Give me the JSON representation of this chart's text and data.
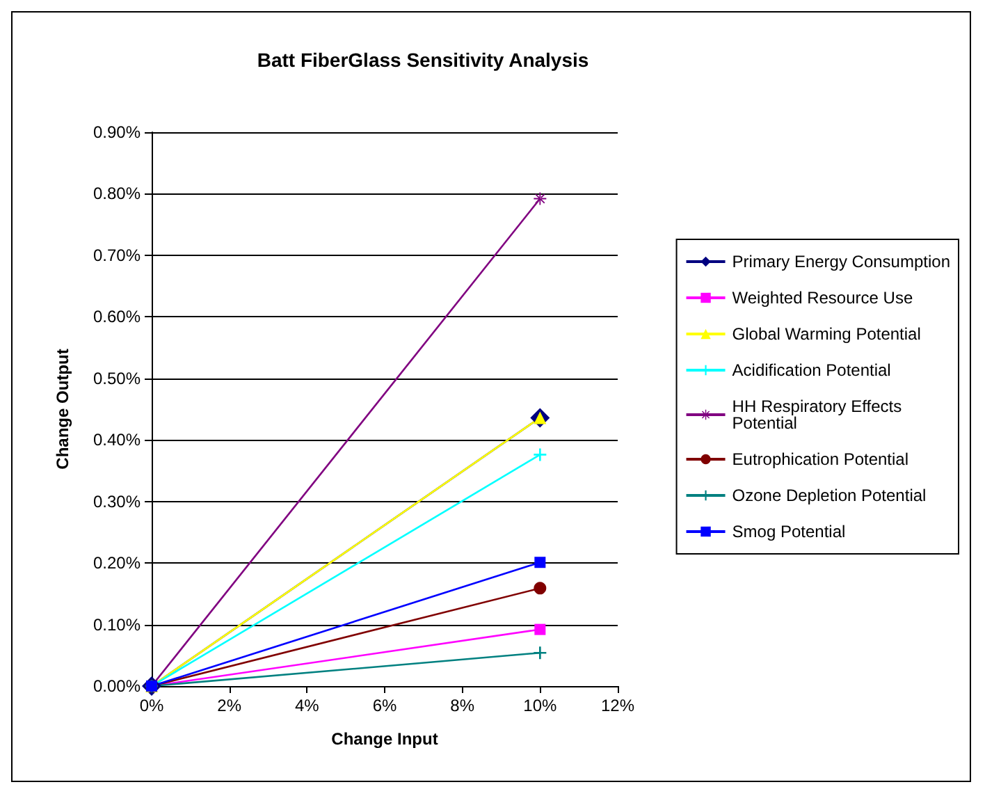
{
  "chart_data": {
    "type": "line",
    "title": "Batt FiberGlass Sensitivity Analysis",
    "xlabel": "Change Input",
    "ylabel": "Change Output",
    "x": [
      0,
      10
    ],
    "series": [
      {
        "name": "Primary Energy Consumption",
        "color": "#000080",
        "marker": "diamond",
        "values": [
          0,
          0.436
        ]
      },
      {
        "name": "Weighted Resource Use",
        "color": "#ff00ff",
        "marker": "square",
        "values": [
          0,
          0.092
        ]
      },
      {
        "name": "Global Warming Potential",
        "color": "#ffff00",
        "marker": "triangle",
        "values": [
          0,
          0.436
        ]
      },
      {
        "name": "Acidification Potential",
        "color": "#00ffff",
        "marker": "cross",
        "values": [
          0,
          0.376
        ]
      },
      {
        "name": "HH Respiratory Effects Potential",
        "color": "#800080",
        "marker": "star",
        "values": [
          0,
          0.792
        ]
      },
      {
        "name": "Eutrophication Potential",
        "color": "#800000",
        "marker": "circle",
        "values": [
          0,
          0.159
        ]
      },
      {
        "name": "Ozone Depletion Potential",
        "color": "#008080",
        "marker": "cross",
        "values": [
          0,
          0.054
        ]
      },
      {
        "name": "Smog Potential",
        "color": "#0000ff",
        "marker": "square",
        "values": [
          0,
          0.201
        ]
      }
    ],
    "xlim": [
      0,
      12
    ],
    "xticks": [
      {
        "value": 0,
        "label": "0%"
      },
      {
        "value": 2,
        "label": "2%"
      },
      {
        "value": 4,
        "label": "4%"
      },
      {
        "value": 6,
        "label": "6%"
      },
      {
        "value": 8,
        "label": "8%"
      },
      {
        "value": 10,
        "label": "10%"
      },
      {
        "value": 12,
        "label": "12%"
      }
    ],
    "ylim": [
      0,
      0.9
    ],
    "yticks": [
      {
        "value": 0,
        "label": "0.00%"
      },
      {
        "value": 0.1,
        "label": "0.10%"
      },
      {
        "value": 0.2,
        "label": "0.20%"
      },
      {
        "value": 0.3,
        "label": "0.30%"
      },
      {
        "value": 0.4,
        "label": "0.40%"
      },
      {
        "value": 0.5,
        "label": "0.50%"
      },
      {
        "value": 0.6,
        "label": "0.60%"
      },
      {
        "value": 0.7,
        "label": "0.70%"
      },
      {
        "value": 0.8,
        "label": "0.80%"
      },
      {
        "value": 0.9,
        "label": "0.90%"
      }
    ],
    "grid": "y",
    "legend": "right",
    "line_style": "solid"
  }
}
